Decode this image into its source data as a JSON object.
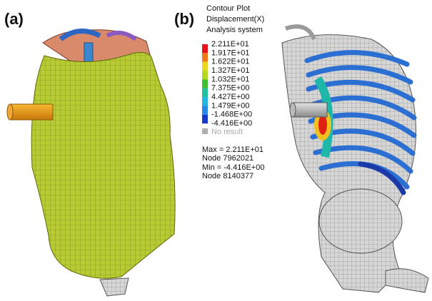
{
  "panels": [
    {
      "label": "(a)"
    },
    {
      "label": "(b)"
    }
  ],
  "legend": {
    "title": [
      "Contour Plot",
      "Displacement(X)",
      "Analysis system"
    ],
    "levels": [
      "2.211E+01",
      "1.917E+01",
      "1.622E+01",
      "1.327E+01",
      "1.032E+01",
      "7.375E+00",
      "4.427E+00",
      "1.479E+00",
      "-1.468E+00",
      "-4.416E+00"
    ],
    "no_result": "No result",
    "summary": [
      "Max = 2.211E+01",
      "Node 7962021",
      "Min = -4.416E+00",
      "Node 8140377"
    ]
  }
}
